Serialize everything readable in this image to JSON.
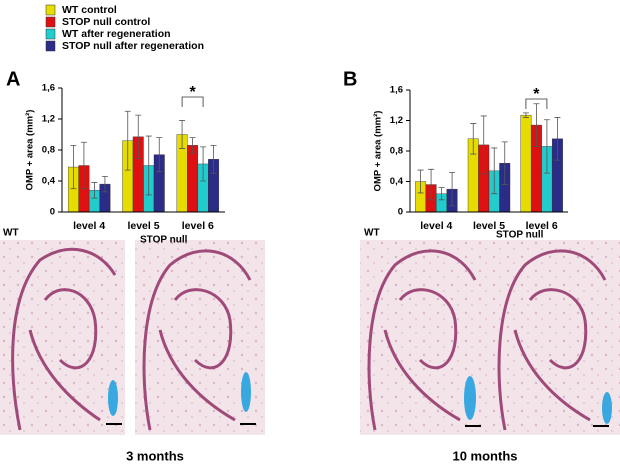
{
  "legend": [
    {
      "name": "WT control",
      "color": "#e6dc00"
    },
    {
      "name": "STOP null control",
      "color": "#dd1111"
    },
    {
      "name": "WT after regeneration",
      "color": "#22cccc"
    },
    {
      "name": "STOP null after regeneration",
      "color": "#2b2b88"
    }
  ],
  "chart_data": [
    {
      "type": "bar",
      "y_label": "OMP + area (mm²)",
      "annotation": "*",
      "categories": [
        "level 4",
        "level 5",
        "level 6"
      ],
      "ylim": [
        0,
        1.6
      ],
      "yticks": [
        0,
        {
          "value": 0.4,
          "label": "0,4"
        },
        {
          "value": 0.8,
          "label": "0,8"
        },
        {
          "value": 1.2,
          "label": "1,2"
        },
        {
          "value": 1.6,
          "label": "1,6"
        }
      ],
      "series": [
        {
          "values": [
            0.58,
            0.92,
            1.0
          ],
          "errors": [
            0.28,
            0.38,
            0.18
          ]
        },
        {
          "values": [
            0.6,
            0.97,
            0.86
          ],
          "errors": [
            0.3,
            0.28,
            0.1
          ]
        },
        {
          "values": [
            0.28,
            0.6,
            0.62
          ],
          "errors": [
            0.1,
            0.38,
            0.22
          ]
        },
        {
          "values": [
            0.36,
            0.74,
            0.68
          ],
          "errors": [
            0.1,
            0.22,
            0.18
          ]
        }
      ]
    },
    {
      "type": "bar",
      "y_label": "OMP + area (mm²)",
      "annotation": "*",
      "categories": [
        "level 4",
        "level 5",
        "level 6"
      ],
      "ylim": [
        0,
        1.6
      ],
      "yticks": [
        0,
        {
          "value": 0.4,
          "label": "0,4"
        },
        {
          "value": 0.8,
          "label": "0,8"
        },
        {
          "value": 1.2,
          "label": "1,2"
        },
        {
          "value": 1.6,
          "label": "1,6"
        }
      ],
      "series": [
        {
          "values": [
            0.4,
            0.96,
            1.27
          ],
          "errors": [
            0.15,
            0.2,
            0.03
          ]
        },
        {
          "values": [
            0.36,
            0.88,
            1.14
          ],
          "errors": [
            0.2,
            0.38,
            0.28
          ]
        },
        {
          "values": [
            0.24,
            0.54,
            0.86
          ],
          "errors": [
            0.08,
            0.3,
            0.35
          ]
        },
        {
          "values": [
            0.3,
            0.64,
            0.96
          ],
          "errors": [
            0.22,
            0.28,
            0.28
          ]
        }
      ]
    }
  ],
  "panels": [
    {
      "label": "A",
      "age": "3 months",
      "images": [
        "WT",
        "STOP null"
      ]
    },
    {
      "label": "B",
      "age": "10 months",
      "images": [
        "WT",
        "STOP null"
      ]
    }
  ]
}
